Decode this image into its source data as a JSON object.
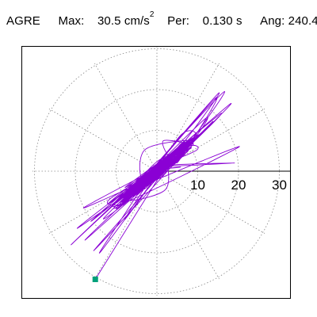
{
  "header": {
    "station": "AGRE",
    "max_label": "Max:",
    "max_value": "30.5",
    "max_unit": "cm/s",
    "max_unit_exp": "2",
    "per_label": "Per:",
    "per_value": "0.130 s",
    "ang_label": "Ang:",
    "ang_value": "240.4"
  },
  "colors": {
    "trace": "#8a00d4",
    "end_marker": "#00a07a",
    "grid": "#888888",
    "axis": "#000000"
  },
  "chart_data": {
    "type": "polar-hodogram",
    "title": "",
    "unit": "cm/s^2",
    "max_amplitude": 30.5,
    "direction_deg": 240.4,
    "period_s": 0.13,
    "radial_ticks": [
      10,
      20,
      30
    ],
    "radial_tick_labels": [
      "10",
      "20",
      "30"
    ],
    "rmax": 30.5,
    "angular_gridlines_deg": [
      0,
      30,
      60,
      90,
      120,
      150,
      180,
      210,
      240,
      270,
      300,
      330
    ],
    "grid": true,
    "end_point": {
      "x": -15.1,
      "y": -26.5
    },
    "trace_points_approx": [
      [
        0.0,
        0.0
      ],
      [
        3.2,
        2.1
      ],
      [
        -2.5,
        -3.0
      ],
      [
        4.0,
        4.8
      ],
      [
        -4.6,
        -2.2
      ],
      [
        2.1,
        -4.5
      ],
      [
        -3.0,
        5.2
      ],
      [
        5.8,
        1.0
      ],
      [
        -6.0,
        -5.1
      ],
      [
        6.9,
        6.2
      ],
      [
        -7.8,
        -4.0
      ],
      [
        1.5,
        7.4
      ],
      [
        -9.0,
        -8.5
      ],
      [
        10.4,
        9.0
      ],
      [
        -11.5,
        -6.8
      ],
      [
        13.5,
        12.0
      ],
      [
        -13.0,
        -11.5
      ],
      [
        15.5,
        14.0
      ],
      [
        -16.0,
        -12.2
      ],
      [
        18.0,
        16.5
      ],
      [
        -17.5,
        -16.8
      ],
      [
        14.5,
        18.0
      ],
      [
        -19.5,
        -14.0
      ],
      [
        20.2,
        6.0
      ],
      [
        -21.0,
        -18.0
      ],
      [
        16.5,
        19.5
      ],
      [
        -15.5,
        -19.5
      ],
      [
        12.0,
        13.0
      ],
      [
        -18.0,
        -9.0
      ],
      [
        9.5,
        5.0
      ],
      [
        -8.0,
        -12.0
      ],
      [
        19.0,
        2.0
      ],
      [
        -14.0,
        -20.0
      ],
      [
        15.0,
        19.0
      ],
      [
        -12.0,
        -8.0
      ],
      [
        6.0,
        9.0
      ],
      [
        -5.0,
        -6.0
      ],
      [
        -15.1,
        -26.5
      ]
    ]
  }
}
